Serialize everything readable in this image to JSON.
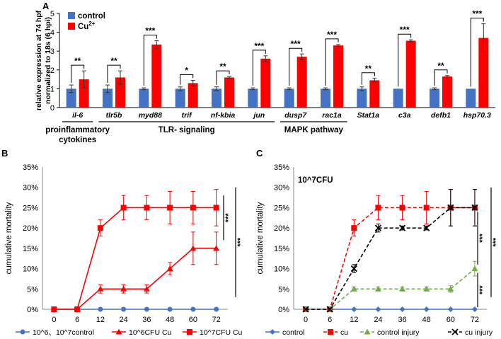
{
  "panels": {
    "a": "A",
    "b": "B",
    "c": "C"
  },
  "chart_data": [
    {
      "id": "A",
      "type": "bar",
      "ylabel": "relative expression at 74 hpf\nnormalized to 18s (6 hpi)",
      "ylim": [
        0,
        5
      ],
      "yticks": [
        0,
        1,
        2,
        3,
        4,
        5
      ],
      "grid": false,
      "legend": "top-left",
      "categories": [
        "il-6",
        "tlr5b",
        "myd88",
        "trif",
        "nf-kbia",
        "jun",
        "dusp7",
        "rac1a",
        "Stat1a",
        "c3a",
        "defb1",
        "hsp70.3"
      ],
      "series": [
        {
          "name": "control",
          "color": "#4472c4",
          "values": [
            1.0,
            1.0,
            1.0,
            1.0,
            1.0,
            1.0,
            1.0,
            1.0,
            1.0,
            1.0,
            1.0,
            1.0
          ],
          "errors": [
            0.2,
            0.2,
            0.05,
            0.1,
            0.1,
            0.05,
            0.05,
            0.05,
            0.1,
            0.0,
            0.05,
            0.0
          ]
        },
        {
          "name": "Cu",
          "name_sup": "2+",
          "color": "#ff0000",
          "values": [
            1.5,
            1.6,
            3.35,
            1.3,
            1.6,
            2.6,
            2.7,
            3.3,
            1.45,
            3.55,
            1.65,
            3.7
          ],
          "errors": [
            0.45,
            0.35,
            0.2,
            0.15,
            0.05,
            0.15,
            0.15,
            0.05,
            0.1,
            0.05,
            0.05,
            0.75
          ]
        }
      ],
      "significance": [
        "**",
        "**",
        "***",
        "*",
        "**",
        "***",
        "***",
        "***",
        "**",
        "***",
        "**",
        "***"
      ],
      "groups": [
        {
          "label": "proinflammatory\ncytokines",
          "from": 0,
          "to": 0
        },
        {
          "label": "TLR- signaling",
          "from": 1,
          "to": 5
        },
        {
          "label": "MAPK pathway",
          "from": 6,
          "to": 7
        }
      ]
    },
    {
      "id": "B",
      "type": "line",
      "ylabel": "cumulative mortality",
      "x": [
        0,
        6,
        12,
        24,
        36,
        48,
        60,
        72
      ],
      "ylim": [
        0,
        35
      ],
      "yticks": [
        "0%",
        "5%",
        "10%",
        "15%",
        "20%",
        "25%",
        "30%",
        "35%"
      ],
      "legend": "bottom",
      "series": [
        {
          "name": "10^6、10^7control",
          "color": "#4472c4",
          "marker": "circle",
          "dash": "",
          "values": [
            0,
            0,
            0,
            0,
            0,
            0,
            0,
            0
          ],
          "errors": [
            0,
            0,
            0,
            0,
            0,
            0,
            0,
            0
          ]
        },
        {
          "name": "10^6CFU Cu",
          "color": "#ff0000",
          "marker": "triangle",
          "dash": "",
          "values": [
            0,
            0,
            5,
            5,
            5,
            10,
            15,
            15
          ],
          "errors": [
            0,
            0,
            1,
            1,
            1,
            1.5,
            4,
            4
          ]
        },
        {
          "name": "10^7CFU Cu",
          "color": "#ff0000",
          "marker": "square",
          "dash": "",
          "values": [
            0,
            0,
            20,
            25,
            25,
            25,
            25,
            25
          ],
          "errors": [
            0,
            0,
            2,
            3,
            3,
            4,
            4,
            4.5
          ]
        }
      ],
      "significance": [
        "***",
        "***"
      ]
    },
    {
      "id": "C",
      "type": "line",
      "title": "10^7CFU",
      "ylabel": "cumulative mortality",
      "x": [
        0,
        6,
        12,
        24,
        36,
        48,
        60,
        72
      ],
      "ylim": [
        0,
        35
      ],
      "yticks": [
        "0%",
        "5%",
        "10%",
        "15%",
        "20%",
        "25%",
        "30%",
        "35%"
      ],
      "legend": "bottom",
      "series": [
        {
          "name": "control",
          "color": "#4472c4",
          "marker": "diamond",
          "dash": "",
          "values": [
            0,
            0,
            0,
            0,
            0,
            0,
            0,
            0
          ],
          "errors": [
            0,
            0,
            0,
            0,
            0,
            0,
            0,
            0
          ]
        },
        {
          "name": "cu",
          "color": "#ff0000",
          "marker": "square",
          "dash": "5,3",
          "values": [
            0,
            0,
            20,
            25,
            25,
            25,
            25,
            25
          ],
          "errors": [
            0,
            0,
            2,
            3,
            3,
            4,
            4.5,
            4.5
          ]
        },
        {
          "name": "control injury",
          "color": "#70ad47",
          "marker": "triangle",
          "dash": "5,3",
          "values": [
            0,
            0,
            5,
            5,
            5,
            5,
            5,
            10
          ],
          "errors": [
            0,
            0,
            0.5,
            0.5,
            0.5,
            0.5,
            0.8,
            1.8
          ]
        },
        {
          "name": "cu injury",
          "color": "#000000",
          "marker": "cross",
          "dash": "5,3",
          "values": [
            0,
            0,
            10,
            20,
            20,
            20,
            25,
            25
          ],
          "errors": [
            0,
            0,
            1,
            1,
            0.5,
            0.5,
            4.5,
            4.5
          ]
        }
      ],
      "significance": [
        "***",
        "***",
        "***"
      ]
    }
  ]
}
